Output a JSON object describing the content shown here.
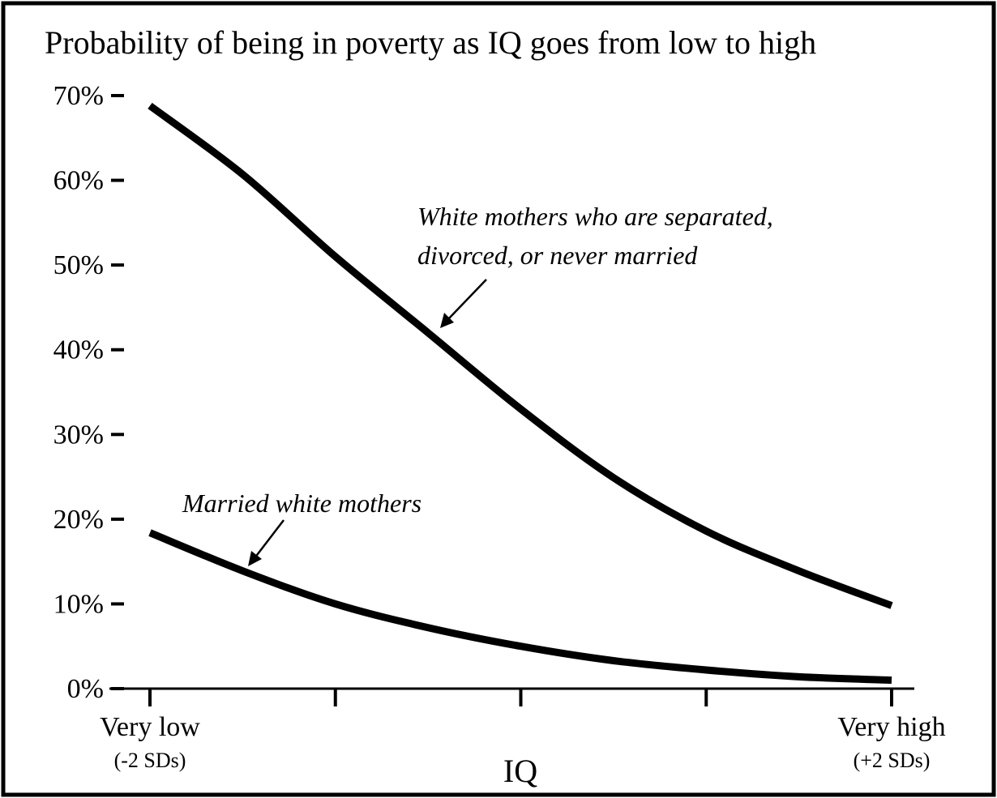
{
  "chart_data": {
    "type": "line",
    "title": "Probability of being in poverty as IQ goes from low to high",
    "x_label": "IQ",
    "x": [
      -2,
      -1.5,
      -1,
      -0.5,
      0,
      0.5,
      1,
      1.5,
      2
    ],
    "series": [
      {
        "name": "White mothers who are separated, divorced, or never married",
        "color": "#000000",
        "values": [
          68.8,
          60.7,
          51,
          42,
          33,
          24.9,
          18.6,
          13.9,
          9.8
        ]
      },
      {
        "name": "Married white mothers",
        "color": "#000000",
        "values": [
          18.4,
          13.9,
          10,
          7.2,
          5,
          3.3,
          2.2,
          1.4,
          1
        ]
      }
    ],
    "annotations": [
      {
        "lines": [
          "White mothers who are separated,",
          "divorced, or never married"
        ]
      },
      {
        "lines": [
          "Married white mothers"
        ]
      }
    ],
    "xlim": [
      -2,
      2
    ],
    "xticks": [
      {
        "value": -2,
        "label": "Very low",
        "sublabel": "(-2 SDs)"
      },
      {
        "value": -1
      },
      {
        "value": 0
      },
      {
        "value": 1
      },
      {
        "value": 2,
        "label": "Very high",
        "sublabel": "(+2 SDs)"
      }
    ],
    "ylim": [
      0,
      70
    ],
    "yticks": [
      {
        "value": 0,
        "label": "0%"
      },
      {
        "value": 10,
        "label": "10%"
      },
      {
        "value": 20,
        "label": "20%"
      },
      {
        "value": 30,
        "label": "30%"
      },
      {
        "value": 40,
        "label": "40%"
      },
      {
        "value": 50,
        "label": "50%"
      },
      {
        "value": 60,
        "label": "60%"
      },
      {
        "value": 70,
        "label": "70%"
      }
    ],
    "grid": false
  }
}
